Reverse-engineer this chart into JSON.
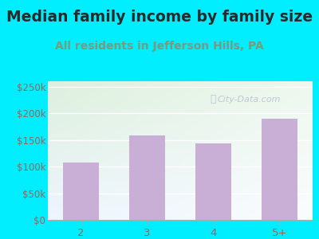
{
  "title": "Median family income by family size",
  "subtitle": "All residents in Jefferson Hills, PA",
  "categories": [
    "2",
    "3",
    "4",
    "5+"
  ],
  "values": [
    107000,
    158000,
    143000,
    190000
  ],
  "bar_color": "#c9afd5",
  "title_fontsize": 13.5,
  "subtitle_fontsize": 10,
  "title_color": "#2a2a2a",
  "subtitle_color": "#7a9a7a",
  "tick_label_color": "#996655",
  "ytick_labels": [
    "$0",
    "$50k",
    "$100k",
    "$150k",
    "$200k",
    "$250k"
  ],
  "ytick_values": [
    0,
    50000,
    100000,
    150000,
    200000,
    250000
  ],
  "ylim": [
    0,
    260000
  ],
  "background_outer": "#00eeff",
  "plot_bg_topleft": "#ddf0dd",
  "plot_bg_bottomright": "#f5faff",
  "watermark_text": "City-Data.com",
  "watermark_color": "#c0c8d0",
  "grid_color": "#e0e8e0"
}
